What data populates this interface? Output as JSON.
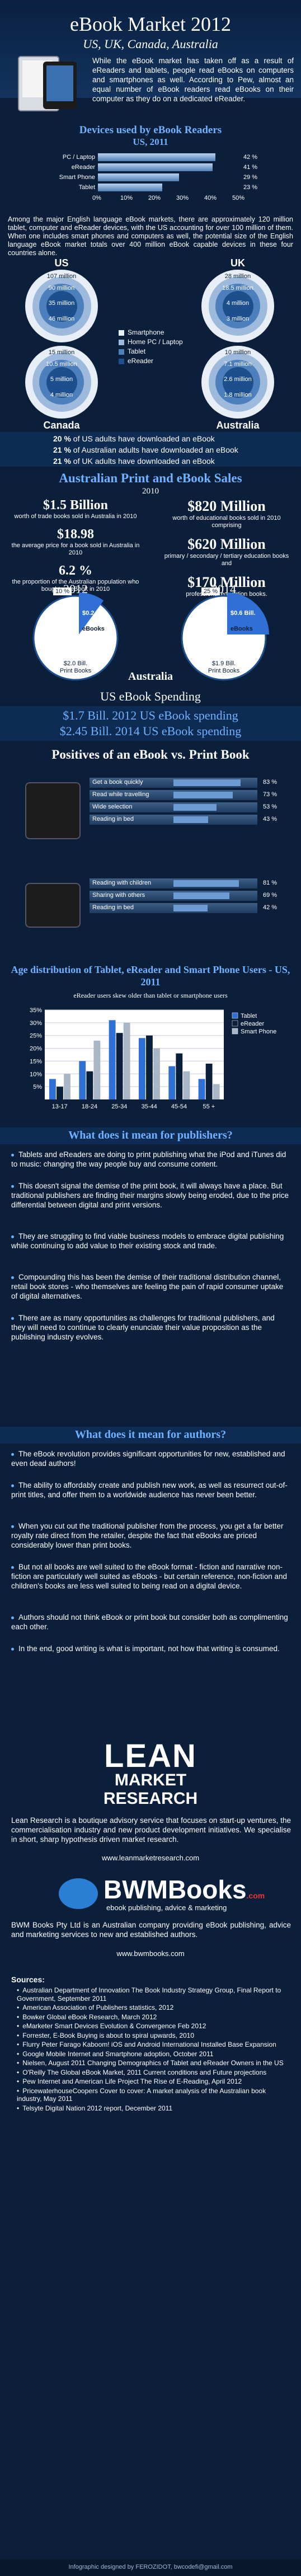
{
  "header": {
    "title": "eBook Market 2012",
    "subtitle": "US, UK, Canada, Australia",
    "intro": "While the eBook market has taken off as a result of eReaders and tablets, people read eBooks on computers and smartphones as well. According to Pew, almost an equal number of eBook readers read eBooks on their computer as they do on a dedicated eReader."
  },
  "devices": {
    "title": "Devices used by eBook Readers",
    "subtitle": "US, 2011",
    "rows": [
      {
        "label": "PC / Laptop",
        "value": 42,
        "text": "42 %"
      },
      {
        "label": "eReader",
        "value": 41,
        "text": "41 %"
      },
      {
        "label": "Smart Phone",
        "value": 29,
        "text": "29 %"
      },
      {
        "label": "Tablet",
        "value": 23,
        "text": "23 %"
      }
    ],
    "ticks": [
      "0%",
      "10%",
      "20%",
      "30%",
      "40%",
      "50%"
    ]
  },
  "population": {
    "text": "Among the major English language eBook markets, there are approximately 120 million tablet, computer and eReader devices, with the US accounting for over 100 million of them. When one includes smart phones and computers as well, the potential size of the English language eBook market totals over 400 million eBook capable devices in these four countries alone.",
    "legend": [
      "Smartphone",
      "Home PC / Laptop",
      "Tablet",
      "eReader"
    ],
    "countries": [
      {
        "name": "US",
        "rings": [
          "107 million",
          "90 million",
          "35 million",
          "46 million"
        ]
      },
      {
        "name": "UK",
        "rings": [
          "28 million",
          "18.5 million",
          "4 million",
          "3 million"
        ]
      },
      {
        "name": "Canada",
        "rings": [
          "15 million",
          "10.5 million",
          "5 million",
          "4 million"
        ]
      },
      {
        "name": "Australia",
        "rings": [
          "10 million",
          "7.1 million",
          "2.6 million",
          "1.8 million"
        ]
      }
    ]
  },
  "downloads": [
    "20 % of US adults have downloaded an eBook",
    "21 % of Australian adults have downloaded an eBook",
    "21 % of UK adults have downloaded an eBook"
  ],
  "sales": {
    "title": "Australian Print and eBook Sales",
    "year": "2010",
    "left": [
      {
        "big": "$1.5 Billion",
        "small": "worth of trade books sold in Australia in 2010"
      },
      {
        "big": "$18.98",
        "small": "the average price for a book sold in Australia in 2010"
      },
      {
        "big": "6.2 %",
        "small": "the proportion of the Australian population who bought an eBook in 2010"
      }
    ],
    "right": [
      {
        "big": "$820 Million",
        "small": "worth of educational books sold in 2010 comprising"
      },
      {
        "big": "$620 Million",
        "small": "primary / secondary / tertiary education books and"
      },
      {
        "big": "$170 Million",
        "small": "professional education books."
      }
    ]
  },
  "australia_pies": {
    "label": "Australia",
    "pies": [
      {
        "year": "2012",
        "ebook_share": 10,
        "ebook_pct": "10 %",
        "ebook_label": "$0.2 Bill.",
        "ebook_name": "eBooks",
        "print_label": "$2.0 Bill.",
        "print_name": "Print Books"
      },
      {
        "year": "2014",
        "ebook_share": 25,
        "ebook_pct": "25 %",
        "ebook_label": "$0.6 Bill.",
        "ebook_name": "eBooks",
        "print_label": "$1.9 Bill.",
        "print_name": "Print Books"
      }
    ]
  },
  "us_spending": {
    "title": "US eBook Spending",
    "line1": "$1.7 Bill. 2012 US eBook spending",
    "line2": "$2.45 Bill. 2014 US eBook spending"
  },
  "positives": {
    "title": "Positives of an eBook vs. Print Book",
    "group1": [
      {
        "label": "Get a book quickly",
        "value": 83,
        "text": "83 %"
      },
      {
        "label": "Read while travelling",
        "value": 73,
        "text": "73 %"
      },
      {
        "label": "Wide selection",
        "value": 53,
        "text": "53 %"
      },
      {
        "label": "Reading in bed",
        "value": 43,
        "text": "43 %"
      }
    ],
    "group2": [
      {
        "label": "Reading with children",
        "value": 81,
        "text": "81 %"
      },
      {
        "label": "Sharing with others",
        "value": 69,
        "text": "69 %"
      },
      {
        "label": "Reading in bed",
        "value": 42,
        "text": "42 %"
      }
    ]
  },
  "chart_data": {
    "type": "bar",
    "title": "Age distribution of Tablet, eReader and Smart Phone Users - US, 2011",
    "subtitle": "eReader users skew older than tablet or smartphone users",
    "categories": [
      "13-17",
      "18-24",
      "25-34",
      "35-44",
      "45-54",
      "55 +"
    ],
    "yticks": [
      "5%",
      "10%",
      "15%",
      "20%",
      "25%",
      "30%",
      "35%"
    ],
    "ylim": [
      0,
      35
    ],
    "series": [
      {
        "name": "Tablet",
        "color": "#2f6fd6",
        "values": [
          8,
          15,
          31,
          24,
          13,
          8
        ]
      },
      {
        "name": "eReader",
        "color": "#0b1f3a",
        "values": [
          5,
          11,
          26,
          25,
          18,
          14
        ]
      },
      {
        "name": "Smart Phone",
        "color": "#a8b6c8",
        "values": [
          10,
          23,
          30,
          20,
          11,
          6
        ]
      }
    ]
  },
  "publishers": {
    "title": "What does it mean for publishers?",
    "points": [
      "Tablets and eReaders are doing to print publishing what the iPod and iTunes did to music: changing the way people buy and consume content.",
      "This doesn't signal the demise of the print book, it will always have a place. But traditional publishers are finding their margins slowly being eroded, due to the price differential between digital and print versions.",
      "They are struggling to find viable business models to embrace digital publishing while continuing to add value to their existing stock and trade.",
      "Compounding this has been the demise of their traditional distribution channel, retail book stores - who themselves are feeling the pain of rapid consumer uptake of digital alternatives.",
      "There are as many opportunities as challenges for traditional publishers, and they will need to continue to clearly enunciate their value proposition as the publishing industry evolves."
    ]
  },
  "authors": {
    "title": "What does it mean for authors?",
    "points": [
      "The eBook revolution provides significant opportunities for new, established and even dead authors!",
      "The ability to affordably create and publish new work, as well as resurrect out-of-print titles, and offer them to a worldwide audience has never been better.",
      "When you cut out the traditional publisher from the process, you get a far better royalty rate direct from the retailer, despite the fact that eBooks are priced considerably lower than print books.",
      "But not all books are well suited to the eBook format - fiction and narrative non-fiction are particularly well suited as eBooks - but certain reference, non-fiction and children's books are less well suited to being read on a digital device.",
      "Authors should not think eBook or print book but consider both as complimenting each other.",
      "In the end, good writing is what is important, not how that writing is consumed."
    ]
  },
  "lean": {
    "logo1": "LEAN",
    "logo2": "MARKET",
    "logo3": "RESEARCH",
    "text": "Lean Research is a boutique advisory service that focuses on start-up ventures, the commercialisation industry and new product development initiatives. We specialise in short, sharp hypothesis driven market research.",
    "url": "www.leanmarketresearch.com"
  },
  "bwm": {
    "logo": "BWMBooks",
    "logo_suffix": ".com",
    "tagline": "ebook publishing, advice & marketing",
    "text": "BWM Books Pty Ltd is an Australian company providing eBook publishing, advice and marketing services to new and established authors.",
    "url": "www.bwmbooks.com"
  },
  "sources": {
    "title": "Sources:",
    "items": [
      "Australian Department of Innovation The Book Industry Strategy Group, Final Report to Government, September 2011",
      "American Association of Publishers statistics, 2012",
      "Bowker Global eBook Research, March 2012",
      "eMarketer Smart Devices Evolution & Convergence Feb 2012",
      "Forrester, E-Book Buying is about to spiral upwards, 2010",
      "Flurry Peter Farago Kaboom! iOS and Android International Installed Base Expansion",
      "Google Mobile Internet and Smartphone adoption, October 2011",
      "Nielsen, August 2011 Changing Demographics of Tablet and eReader Owners in the US",
      "O'Reilly The Global eBook Market, 2011 Current conditions and Future projections",
      "Pew Internet and American Life Project The Rise of E-Reading, April 2012",
      "PricewaterhouseCoopers Cover to cover: A market analysis of the Australian book industry, May 2011",
      "Telsyte Digital Nation 2012 report, December 2011"
    ],
    "footer": "Infographic designed by FEROZIDOT, bwcodefi@gmail.com"
  }
}
